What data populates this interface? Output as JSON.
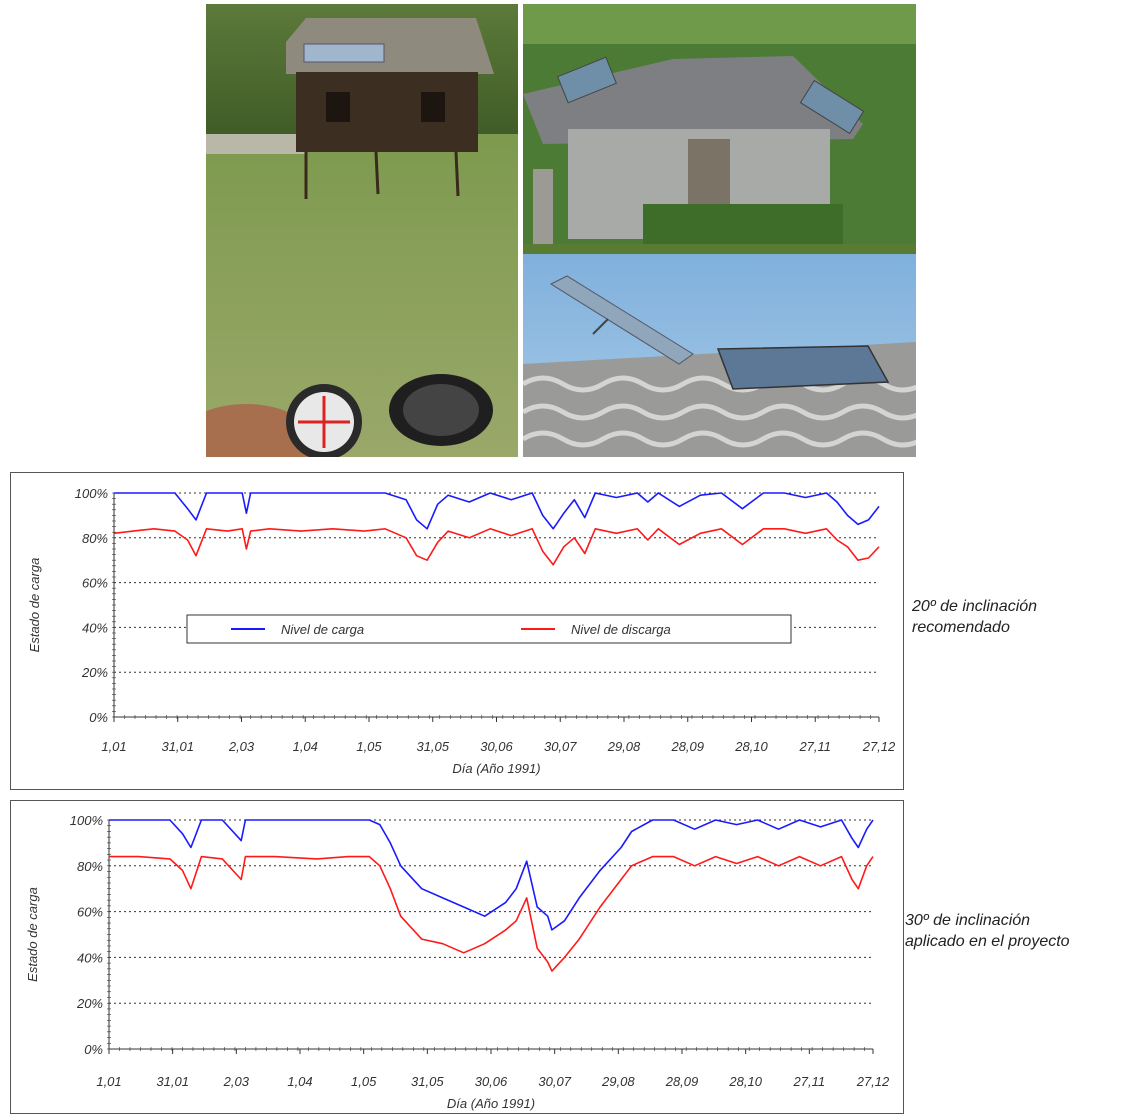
{
  "photos": [
    {
      "name": "house-with-compass-photo",
      "subject": "wooden house with roof solar panels and compass in hand"
    },
    {
      "name": "house-side-photo",
      "subject": "wooden house with tilted solar panels on roof"
    },
    {
      "name": "roof-panels-photo",
      "subject": "close-up of solar panels on corrugated roof"
    }
  ],
  "captions": [
    {
      "line1": "20º de inclinación",
      "line2": "recomendado"
    },
    {
      "line1": "30º de inclinación",
      "line2": "aplicado en el proyecto"
    }
  ],
  "colors": {
    "carga": "#1a1aff",
    "discarga": "#ff1a1a"
  },
  "chart_data": [
    {
      "type": "line",
      "title": "",
      "xlabel": "Día (Año 1991)",
      "ylabel": "Estado de carga",
      "x_ticks": [
        "1,01",
        "31,01",
        "2,03",
        "1,04",
        "1,05",
        "31,05",
        "30,06",
        "30,07",
        "29,08",
        "28,09",
        "28,10",
        "27,11",
        "27,12"
      ],
      "y_ticks": [
        "0%",
        "20%",
        "40%",
        "60%",
        "80%",
        "100%"
      ],
      "ylim": [
        0,
        100
      ],
      "xlim": [
        1,
        365
      ],
      "grid": "horizontal dotted",
      "legend": {
        "placement": "center",
        "entries": [
          "Nivel de carga",
          "Nivel de discarga"
        ]
      },
      "series": [
        {
          "name": "Nivel de carga",
          "color": "#1a1aff",
          "x": [
            1,
            10,
            20,
            30,
            36,
            40,
            45,
            55,
            62,
            64,
            66,
            75,
            90,
            105,
            120,
            130,
            140,
            145,
            150,
            155,
            160,
            170,
            180,
            190,
            200,
            205,
            210,
            215,
            220,
            225,
            230,
            240,
            250,
            255,
            260,
            270,
            280,
            290,
            300,
            310,
            320,
            330,
            340,
            345,
            350,
            355,
            360,
            365
          ],
          "y": [
            100,
            100,
            100,
            100,
            93,
            88,
            100,
            100,
            100,
            91,
            100,
            100,
            100,
            100,
            100,
            100,
            97,
            88,
            84,
            95,
            99,
            96,
            100,
            97,
            100,
            90,
            84,
            91,
            97,
            89,
            100,
            98,
            100,
            96,
            100,
            94,
            99,
            100,
            93,
            100,
            100,
            98,
            100,
            96,
            90,
            86,
            88,
            94
          ]
        },
        {
          "name": "Nivel de discarga",
          "color": "#ff1a1a",
          "x": [
            1,
            10,
            20,
            30,
            36,
            40,
            45,
            55,
            62,
            64,
            66,
            75,
            90,
            105,
            120,
            130,
            140,
            145,
            150,
            155,
            160,
            170,
            180,
            190,
            200,
            205,
            210,
            215,
            220,
            225,
            230,
            240,
            250,
            255,
            260,
            270,
            280,
            290,
            300,
            310,
            320,
            330,
            340,
            345,
            350,
            355,
            360,
            365
          ],
          "y": [
            82,
            83,
            84,
            83,
            79,
            72,
            84,
            83,
            84,
            75,
            83,
            84,
            83,
            84,
            83,
            84,
            80,
            72,
            70,
            78,
            83,
            80,
            84,
            81,
            84,
            74,
            68,
            76,
            80,
            73,
            84,
            82,
            84,
            79,
            84,
            77,
            82,
            84,
            77,
            84,
            84,
            82,
            84,
            79,
            76,
            70,
            71,
            76
          ]
        }
      ]
    },
    {
      "type": "line",
      "title": "",
      "xlabel": "Día (Año 1991)",
      "ylabel": "Estado de carga",
      "x_ticks": [
        "1,01",
        "31,01",
        "2,03",
        "1,04",
        "1,05",
        "31,05",
        "30,06",
        "30,07",
        "29,08",
        "28,09",
        "28,10",
        "27,11",
        "27,12"
      ],
      "y_ticks": [
        "0%",
        "20%",
        "40%",
        "60%",
        "80%",
        "100%"
      ],
      "ylim": [
        0,
        100
      ],
      "xlim": [
        1,
        365
      ],
      "grid": "horizontal dotted",
      "series": [
        {
          "name": "Nivel de carga",
          "color": "#1a1aff",
          "x": [
            1,
            15,
            30,
            36,
            40,
            45,
            55,
            64,
            66,
            80,
            100,
            115,
            125,
            130,
            135,
            140,
            150,
            160,
            170,
            180,
            190,
            195,
            200,
            205,
            210,
            212,
            218,
            225,
            235,
            245,
            250,
            260,
            270,
            280,
            290,
            300,
            310,
            320,
            330,
            340,
            350,
            355,
            358,
            362,
            365
          ],
          "y": [
            100,
            100,
            100,
            94,
            88,
            100,
            100,
            91,
            100,
            100,
            100,
            100,
            100,
            98,
            90,
            80,
            70,
            66,
            62,
            58,
            64,
            70,
            82,
            62,
            58,
            52,
            56,
            66,
            78,
            88,
            95,
            100,
            100,
            96,
            100,
            98,
            100,
            96,
            100,
            97,
            100,
            92,
            88,
            96,
            100
          ]
        },
        {
          "name": "Nivel de discarga",
          "color": "#ff1a1a",
          "x": [
            1,
            15,
            30,
            36,
            40,
            45,
            55,
            64,
            66,
            80,
            100,
            115,
            125,
            130,
            135,
            140,
            150,
            160,
            170,
            180,
            190,
            195,
            200,
            205,
            210,
            212,
            218,
            225,
            235,
            245,
            250,
            260,
            270,
            280,
            290,
            300,
            310,
            320,
            330,
            340,
            350,
            355,
            358,
            362,
            365
          ],
          "y": [
            84,
            84,
            83,
            78,
            70,
            84,
            83,
            74,
            84,
            84,
            83,
            84,
            84,
            80,
            70,
            58,
            48,
            46,
            42,
            46,
            52,
            56,
            66,
            44,
            38,
            34,
            40,
            48,
            62,
            74,
            80,
            84,
            84,
            80,
            84,
            81,
            84,
            80,
            84,
            80,
            84,
            74,
            70,
            80,
            84
          ]
        }
      ]
    }
  ]
}
